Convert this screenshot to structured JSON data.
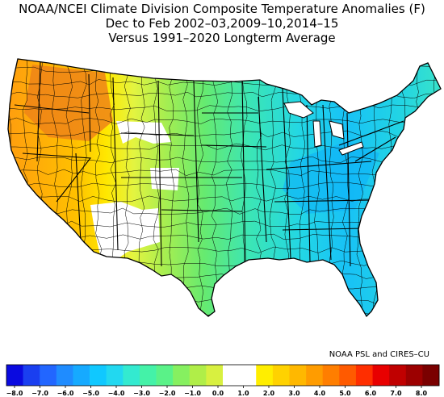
{
  "title": {
    "line1": "NOAA/NCEI Climate Division Composite Temperature Anomalies (F)",
    "line2": "Dec to Feb  2002–03,2009–10,2014–15",
    "line3": "Versus 1991–2020 Longterm Average"
  },
  "credit": "NOAA PSL and CIRES–CU",
  "colorbar": {
    "colors": [
      "#0a0ae0",
      "#1a3ff0",
      "#2266ff",
      "#1f8cff",
      "#16aaff",
      "#10c8ff",
      "#22d8f0",
      "#33ead0",
      "#44f2a8",
      "#5af288",
      "#86f060",
      "#b0ee48",
      "#d8f040",
      "#ffffff",
      "#ffffff",
      "#ffee00",
      "#ffd200",
      "#ffb800",
      "#ff9c00",
      "#ff7e00",
      "#ff5a00",
      "#ff2e00",
      "#e80000",
      "#c00000",
      "#9c0000",
      "#7a0000"
    ],
    "labels": [
      "−8.0",
      "−7.0",
      "−6.0",
      "−5.0",
      "−4.0",
      "−3.0",
      "−2.0",
      "−1.0",
      "0.0",
      "1.0",
      "2.0",
      "3.0",
      "4.0",
      "5.0",
      "6.0",
      "7.0",
      "8.0"
    ]
  }
}
